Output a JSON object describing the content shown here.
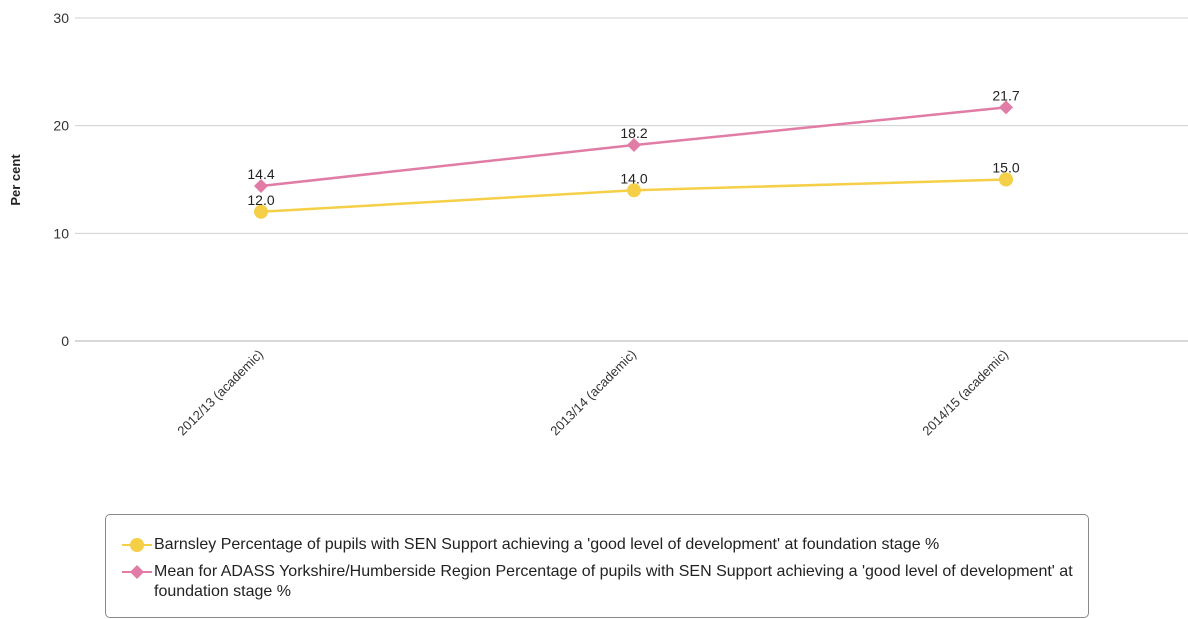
{
  "chart_data": {
    "type": "line",
    "categories": [
      "2012/13 (academic)",
      "2013/14 (academic)",
      "2014/15 (academic)"
    ],
    "ylabel": "Per cent",
    "xlabel": "",
    "ylim": [
      0,
      30
    ],
    "yticks": [
      0,
      10,
      20,
      30
    ],
    "grid": true,
    "legend_position": "bottom",
    "series": [
      {
        "name": "Barnsley Percentage of pupils with SEN Support achieving a 'good level of development' at foundation stage %",
        "values": [
          12.0,
          14.0,
          15.0
        ],
        "labels": [
          "12.0",
          "14.0",
          "15.0"
        ],
        "color": "#f5cf47",
        "marker": "circle"
      },
      {
        "name": "Mean for ADASS Yorkshire/Humberside Region Percentage of pupils with SEN Support achieving a 'good level of development' at foundation stage %",
        "values": [
          14.4,
          18.2,
          21.7
        ],
        "labels": [
          "14.4",
          "18.2",
          "21.7"
        ],
        "color": "#e07ca6",
        "marker": "diamond"
      }
    ]
  }
}
